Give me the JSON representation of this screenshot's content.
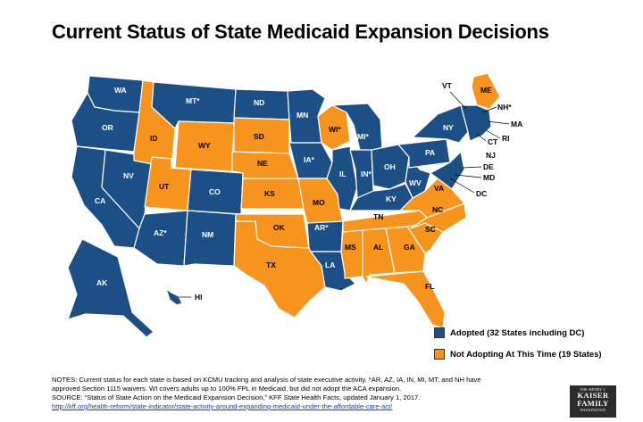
{
  "title": "Current Status of State Medicaid Expansion Decisions",
  "colors": {
    "adopted": "#1d4f87",
    "not_adopting": "#f7941d",
    "border": "#ffffff"
  },
  "legend": [
    {
      "key": "adopted",
      "label": "Adopted (32 States including DC)"
    },
    {
      "key": "not_adopting",
      "label": "Not Adopting At This Time (19 States)"
    }
  ],
  "states": {
    "WA": {
      "label": "WA",
      "status": "adopted"
    },
    "OR": {
      "label": "OR",
      "status": "adopted"
    },
    "CA": {
      "label": "CA",
      "status": "adopted"
    },
    "NV": {
      "label": "NV",
      "status": "adopted"
    },
    "ID": {
      "label": "ID",
      "status": "not_adopting"
    },
    "MT": {
      "label": "MT*",
      "status": "adopted"
    },
    "WY": {
      "label": "WY",
      "status": "not_adopting"
    },
    "UT": {
      "label": "UT",
      "status": "not_adopting"
    },
    "AZ": {
      "label": "AZ*",
      "status": "adopted"
    },
    "CO": {
      "label": "CO",
      "status": "adopted"
    },
    "NM": {
      "label": "NM",
      "status": "adopted"
    },
    "ND": {
      "label": "ND",
      "status": "adopted"
    },
    "SD": {
      "label": "SD",
      "status": "not_adopting"
    },
    "NE": {
      "label": "NE",
      "status": "not_adopting"
    },
    "KS": {
      "label": "KS",
      "status": "not_adopting"
    },
    "OK": {
      "label": "OK",
      "status": "not_adopting"
    },
    "TX": {
      "label": "TX",
      "status": "not_adopting"
    },
    "MN": {
      "label": "MN",
      "status": "adopted"
    },
    "IA": {
      "label": "IA*",
      "status": "adopted"
    },
    "MO": {
      "label": "MO",
      "status": "not_adopting"
    },
    "AR": {
      "label": "AR*",
      "status": "adopted"
    },
    "LA": {
      "label": "LA",
      "status": "adopted"
    },
    "WI": {
      "label": "WI*",
      "status": "not_adopting"
    },
    "IL": {
      "label": "IL",
      "status": "adopted"
    },
    "MI": {
      "label": "MI*",
      "status": "adopted"
    },
    "IN": {
      "label": "IN*",
      "status": "adopted"
    },
    "OH": {
      "label": "OH",
      "status": "adopted"
    },
    "KY": {
      "label": "KY",
      "status": "adopted"
    },
    "TN": {
      "label": "TN",
      "status": "not_adopting"
    },
    "MS": {
      "label": "MS",
      "status": "not_adopting"
    },
    "AL": {
      "label": "AL",
      "status": "not_adopting"
    },
    "GA": {
      "label": "GA",
      "status": "not_adopting"
    },
    "FL": {
      "label": "FL",
      "status": "not_adopting"
    },
    "SC": {
      "label": "SC",
      "status": "not_adopting"
    },
    "NC": {
      "label": "NC",
      "status": "not_adopting"
    },
    "VA": {
      "label": "VA",
      "status": "not_adopting"
    },
    "WV": {
      "label": "WV",
      "status": "adopted"
    },
    "PA": {
      "label": "PA",
      "status": "adopted"
    },
    "NY": {
      "label": "NY",
      "status": "adopted"
    },
    "ME": {
      "label": "ME",
      "status": "not_adopting"
    },
    "NE_region": {
      "label": "",
      "status": "adopted"
    },
    "AK": {
      "label": "AK",
      "status": "adopted"
    },
    "HI": {
      "label": "HI",
      "status": "adopted"
    }
  },
  "external_labels": {
    "VT": "VT",
    "NH": "NH*",
    "MA": "MA",
    "RI": "RI",
    "CT": "CT",
    "NJ": "NJ",
    "DE": "DE",
    "MD": "MD",
    "DC": "DC"
  },
  "notes": {
    "line1": "NOTES: Current status for each state is based on KCMU tracking and analysis of state executive activity. *AR, AZ, IA, IN, MI, MT, and NH have",
    "line2": "approved Section 1115 waivers. WI covers adults up to 100% FPL in Medicaid, but did not adopt the ACA expansion.",
    "line3": "SOURCE: “Status of State Action on the Medicaid Expansion Decision,” KFF State Health Facts, updated January 1, 2017.",
    "link": "http://kff.org/health-reform/state-indicator/state-activity-around-expanding-medicaid-under-the-affordable-care-act/"
  },
  "logo": {
    "top": "THE HENRY J.",
    "line1": "KAISER",
    "line2": "FAMILY",
    "bottom": "FOUNDATION"
  }
}
